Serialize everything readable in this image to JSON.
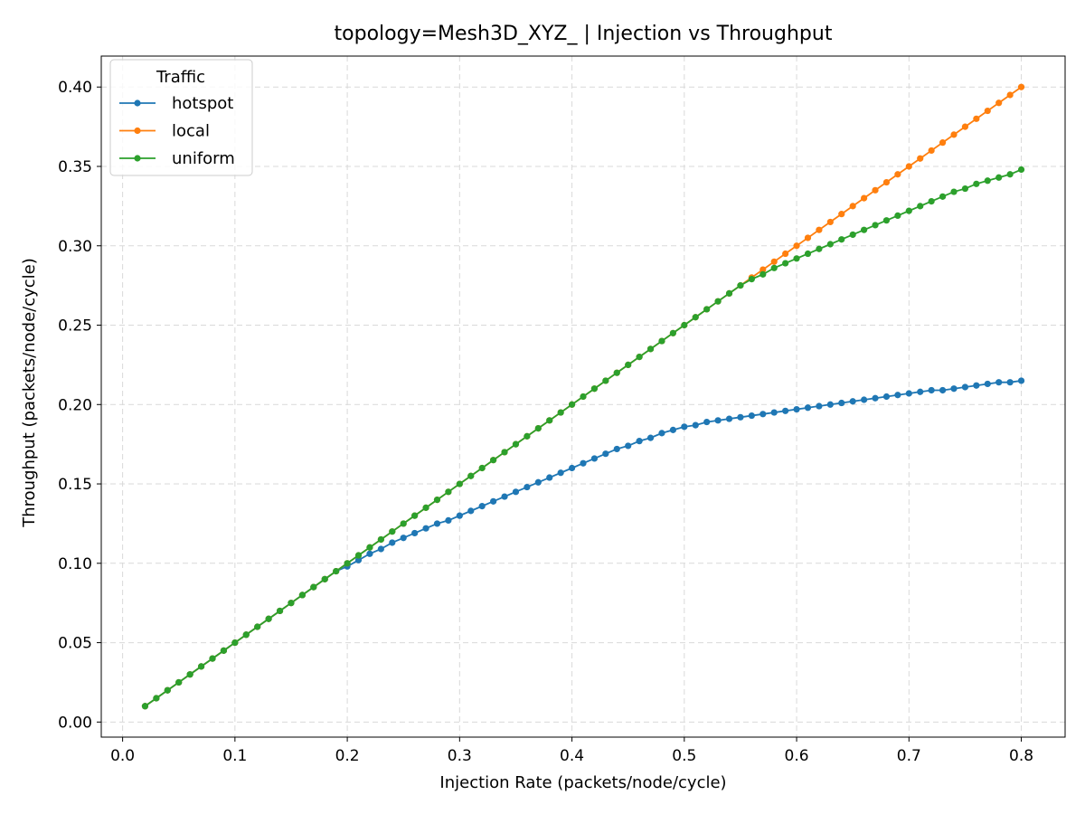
{
  "chart_data": {
    "type": "line",
    "title": "topology=Mesh3D_XYZ_ | Injection vs Throughput",
    "xlabel": "Injection Rate (packets/node/cycle)",
    "ylabel": "Throughput (packets/node/cycle)",
    "xlim": [
      -0.019,
      0.839
    ],
    "ylim": [
      -0.0095,
      0.4195
    ],
    "xticks": [
      "0.0",
      "0.1",
      "0.2",
      "0.3",
      "0.4",
      "0.5",
      "0.6",
      "0.7",
      "0.8"
    ],
    "yticks": [
      "0.00",
      "0.05",
      "0.10",
      "0.15",
      "0.20",
      "0.25",
      "0.30",
      "0.35",
      "0.40"
    ],
    "grid": true,
    "legend": {
      "title": "Traffic",
      "placement": "top-left"
    },
    "x": [
      0.02,
      0.03,
      0.04,
      0.05,
      0.06,
      0.07,
      0.08,
      0.09,
      0.1,
      0.11,
      0.12,
      0.13,
      0.14,
      0.15,
      0.16,
      0.17,
      0.18,
      0.19,
      0.2,
      0.21,
      0.22,
      0.23,
      0.24,
      0.25,
      0.26,
      0.27,
      0.28,
      0.29,
      0.3,
      0.31,
      0.32,
      0.33,
      0.34,
      0.35,
      0.36,
      0.37,
      0.38,
      0.39,
      0.4,
      0.41,
      0.42,
      0.43,
      0.44,
      0.45,
      0.46,
      0.47,
      0.48,
      0.49,
      0.5,
      0.51,
      0.52,
      0.53,
      0.54,
      0.55,
      0.56,
      0.57,
      0.58,
      0.59,
      0.6,
      0.61,
      0.62,
      0.63,
      0.64,
      0.65,
      0.66,
      0.67,
      0.68,
      0.69,
      0.7,
      0.71,
      0.72,
      0.73,
      0.74,
      0.75,
      0.76,
      0.77,
      0.78,
      0.79,
      0.8
    ],
    "series": [
      {
        "name": "hotspot",
        "color": "#1f77b4",
        "values": [
          0.01,
          0.015,
          0.02,
          0.025,
          0.03,
          0.035,
          0.04,
          0.045,
          0.05,
          0.055,
          0.06,
          0.065,
          0.07,
          0.075,
          0.08,
          0.085,
          0.09,
          0.095,
          0.098,
          0.102,
          0.106,
          0.109,
          0.113,
          0.116,
          0.119,
          0.122,
          0.125,
          0.127,
          0.13,
          0.133,
          0.136,
          0.139,
          0.142,
          0.145,
          0.148,
          0.151,
          0.154,
          0.157,
          0.16,
          0.163,
          0.166,
          0.169,
          0.172,
          0.174,
          0.177,
          0.179,
          0.182,
          0.184,
          0.186,
          0.187,
          0.189,
          0.19,
          0.191,
          0.192,
          0.193,
          0.194,
          0.195,
          0.196,
          0.197,
          0.198,
          0.199,
          0.2,
          0.201,
          0.202,
          0.203,
          0.204,
          0.205,
          0.206,
          0.207,
          0.208,
          0.209,
          0.209,
          0.21,
          0.211,
          0.212,
          0.213,
          0.214,
          0.214,
          0.215
        ]
      },
      {
        "name": "local",
        "color": "#ff7f0e",
        "values": [
          0.01,
          0.015,
          0.02,
          0.025,
          0.03,
          0.035,
          0.04,
          0.045,
          0.05,
          0.055,
          0.06,
          0.065,
          0.07,
          0.075,
          0.08,
          0.085,
          0.09,
          0.095,
          0.1,
          0.105,
          0.11,
          0.115,
          0.12,
          0.125,
          0.13,
          0.135,
          0.14,
          0.145,
          0.15,
          0.155,
          0.16,
          0.165,
          0.17,
          0.175,
          0.18,
          0.185,
          0.19,
          0.195,
          0.2,
          0.205,
          0.21,
          0.215,
          0.22,
          0.225,
          0.23,
          0.235,
          0.24,
          0.245,
          0.25,
          0.255,
          0.26,
          0.265,
          0.27,
          0.275,
          0.28,
          0.285,
          0.29,
          0.295,
          0.3,
          0.305,
          0.31,
          0.315,
          0.32,
          0.325,
          0.33,
          0.335,
          0.34,
          0.345,
          0.35,
          0.355,
          0.36,
          0.365,
          0.37,
          0.375,
          0.38,
          0.385,
          0.39,
          0.395,
          0.4
        ]
      },
      {
        "name": "uniform",
        "color": "#2ca02c",
        "values": [
          0.01,
          0.015,
          0.02,
          0.025,
          0.03,
          0.035,
          0.04,
          0.045,
          0.05,
          0.055,
          0.06,
          0.065,
          0.07,
          0.075,
          0.08,
          0.085,
          0.09,
          0.095,
          0.1,
          0.105,
          0.11,
          0.115,
          0.12,
          0.125,
          0.13,
          0.135,
          0.14,
          0.145,
          0.15,
          0.155,
          0.16,
          0.165,
          0.17,
          0.175,
          0.18,
          0.185,
          0.19,
          0.195,
          0.2,
          0.205,
          0.21,
          0.215,
          0.22,
          0.225,
          0.23,
          0.235,
          0.24,
          0.245,
          0.25,
          0.255,
          0.26,
          0.265,
          0.27,
          0.275,
          0.279,
          0.282,
          0.286,
          0.289,
          0.292,
          0.295,
          0.298,
          0.301,
          0.304,
          0.307,
          0.31,
          0.313,
          0.316,
          0.319,
          0.322,
          0.325,
          0.328,
          0.331,
          0.334,
          0.336,
          0.339,
          0.341,
          0.343,
          0.345,
          0.348
        ]
      }
    ]
  }
}
